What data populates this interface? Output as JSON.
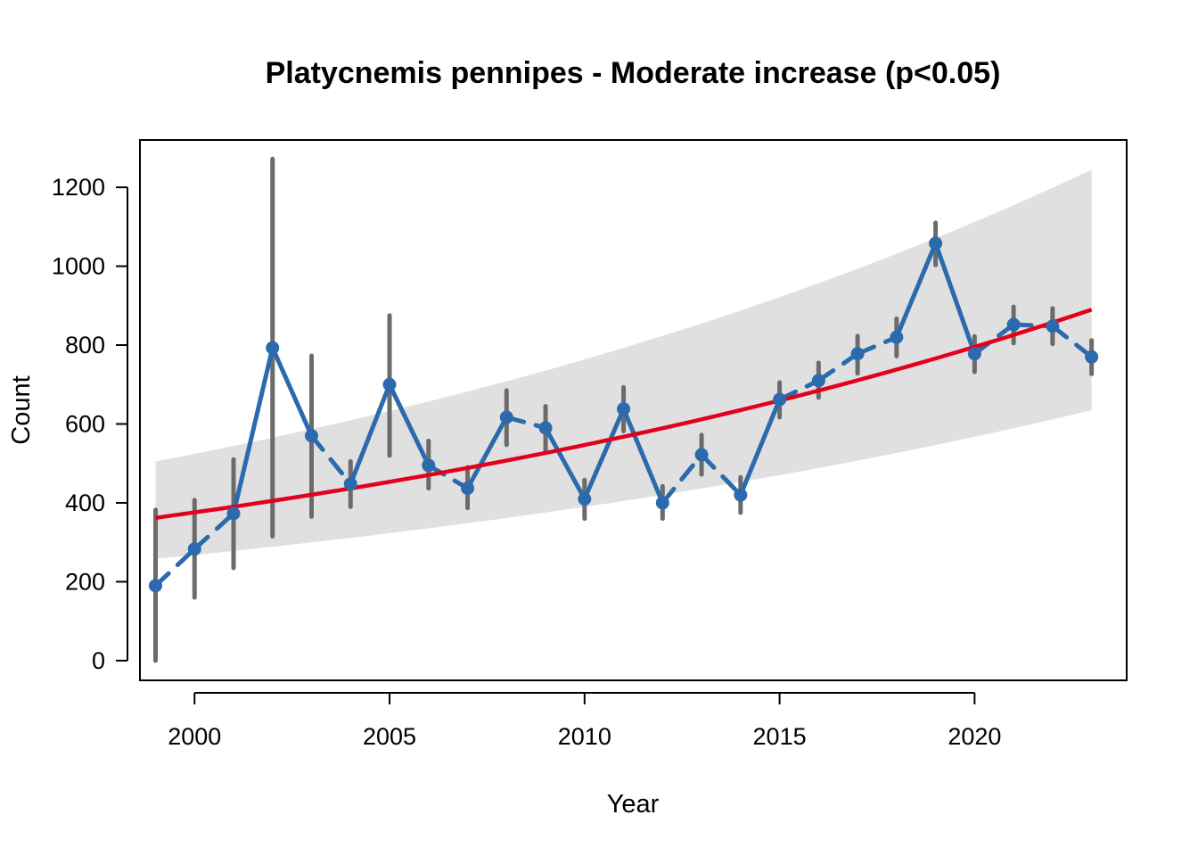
{
  "chart_data": {
    "type": "line",
    "title": "Platycnemis pennipes - Moderate increase (p<0.05)",
    "xlabel": "Year",
    "ylabel": "Count",
    "xlim": [
      1998.6,
      2023.9
    ],
    "ylim": [
      -50,
      1320
    ],
    "x_ticks": [
      2000,
      2005,
      2010,
      2015,
      2020
    ],
    "y_ticks": [
      0,
      200,
      400,
      600,
      800,
      1000,
      1200
    ],
    "grid": false,
    "colors": {
      "observed": "#2b6aad",
      "trend": "#e3001b",
      "error_bar": "#6b6b6b",
      "confidence_band": "#e0e0e0"
    },
    "observed": {
      "x": [
        1999,
        2000,
        2001,
        2002,
        2003,
        2004,
        2005,
        2006,
        2007,
        2008,
        2009,
        2010,
        2011,
        2012,
        2013,
        2014,
        2015,
        2016,
        2017,
        2018,
        2019,
        2020,
        2021,
        2022,
        2023
      ],
      "y": [
        190,
        283,
        373,
        793,
        570,
        448,
        700,
        495,
        437,
        617,
        590,
        410,
        638,
        400,
        522,
        420,
        662,
        710,
        778,
        820,
        1058,
        778,
        852,
        848,
        770
      ],
      "lower": [
        0,
        160,
        235,
        315,
        365,
        390,
        520,
        437,
        387,
        547,
        532,
        360,
        582,
        360,
        472,
        375,
        617,
        667,
        728,
        772,
        1003,
        732,
        805,
        803,
        727
      ],
      "upper": [
        382,
        407,
        510,
        1272,
        773,
        505,
        875,
        557,
        490,
        685,
        645,
        458,
        693,
        442,
        572,
        465,
        705,
        755,
        823,
        867,
        1110,
        822,
        897,
        893,
        812
      ],
      "segment_style": [
        "dashed",
        "dashed",
        "solid",
        "solid",
        "dashed",
        "solid",
        "solid",
        "dashed",
        "solid",
        "dashed",
        "solid",
        "solid",
        "solid",
        "dashed",
        "dashed",
        "solid",
        "dashed",
        "dashed",
        "dashed",
        "solid",
        "solid",
        "dashed",
        "dashed",
        "dashed"
      ]
    },
    "trend": {
      "x": [
        1999,
        2023
      ],
      "start": 362,
      "end": 890,
      "band_lower_start": 258,
      "band_lower_end": 635,
      "band_upper_start": 505,
      "band_upper_end": 1245
    }
  }
}
